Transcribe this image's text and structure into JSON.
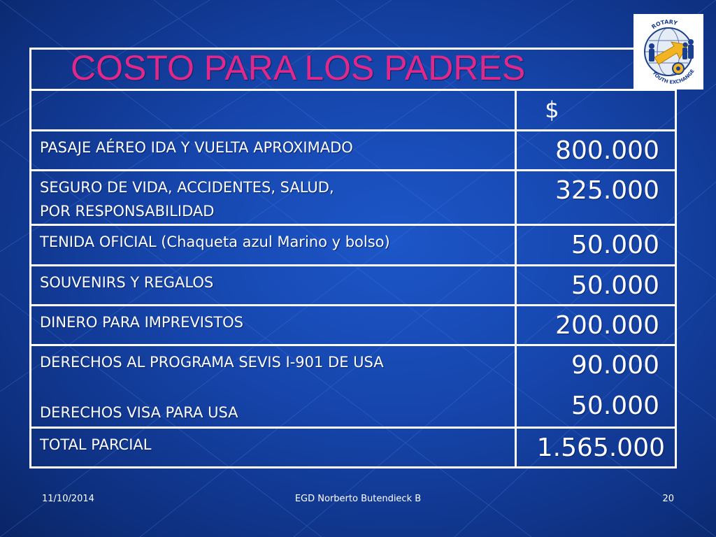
{
  "slide": {
    "title": "COSTO PARA LOS PADRES",
    "currency_header": "$",
    "rows": [
      {
        "label_lines": [
          "PASAJE AÉREO IDA Y VUELTA APROXIMADO"
        ],
        "values": [
          "800.000"
        ]
      },
      {
        "label_lines": [
          "SEGURO DE VIDA, ACCIDENTES, SALUD,",
          "POR RESPONSABILIDAD"
        ],
        "values": [
          "325.000"
        ]
      },
      {
        "label_lines": [
          "TENIDA OFICIAL (Chaqueta azul Marino y bolso)"
        ],
        "values": [
          "50.000"
        ]
      },
      {
        "label_lines": [
          "SOUVENIRS Y REGALOS"
        ],
        "values": [
          "50.000"
        ]
      },
      {
        "label_lines": [
          "DINERO PARA IMPREVISTOS"
        ],
        "values": [
          "200.000"
        ]
      },
      {
        "label_lines": [
          "DERECHOS AL PROGRAMA SEVIS I-901 DE USA",
          "DERECHOS VISA PARA USA"
        ],
        "values": [
          "90.000",
          "50.000"
        ]
      },
      {
        "label_lines": [
          "TOTAL PARCIAL"
        ],
        "values": [
          "1.565.000"
        ]
      }
    ]
  },
  "logo": {
    "icon": "rotary-youth-exchange-logo",
    "text_top": "ROTARY",
    "text_bottom": "YOUTH EXCHANGE"
  },
  "footer": {
    "date": "11/10/2014",
    "author": "EGD Norberto Butendieck B",
    "page_number": "20"
  },
  "colors": {
    "background": "#1646ad",
    "title": "#e0288a",
    "text": "#ffffff"
  }
}
